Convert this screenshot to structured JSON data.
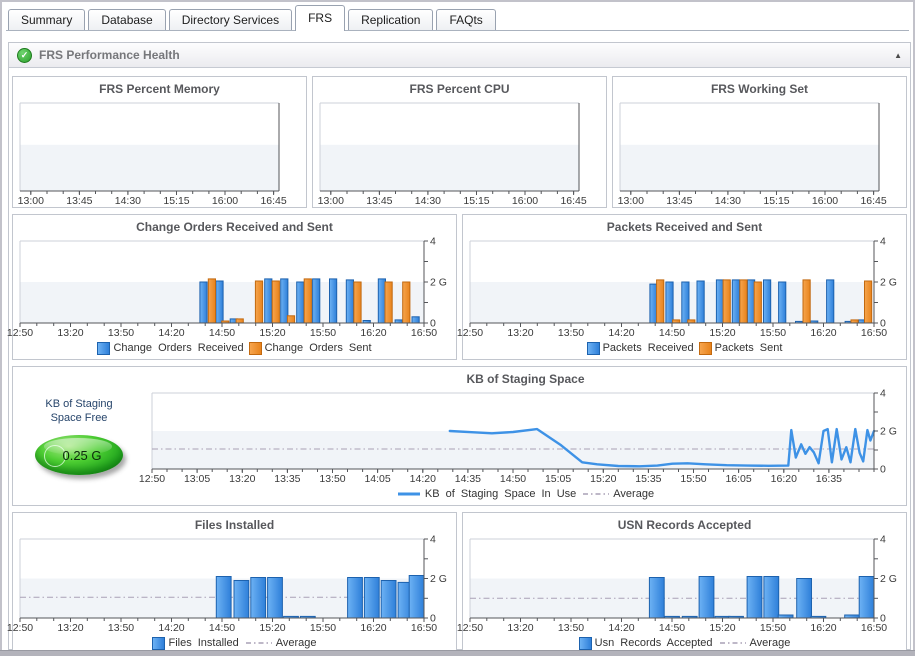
{
  "tabs": [
    {
      "label": "Summary",
      "active": false
    },
    {
      "label": "Database",
      "active": false
    },
    {
      "label": "Directory Services",
      "active": false
    },
    {
      "label": "FRS",
      "active": true
    },
    {
      "label": "Replication",
      "active": false
    },
    {
      "label": "FAQts",
      "active": false
    }
  ],
  "section": {
    "title": "FRS Performance Health"
  },
  "icons": {
    "health_ok": "✓",
    "collapse": "▲"
  },
  "gauge": {
    "label_line1": "KB of Staging",
    "label_line2": "Space Free",
    "value": "0.25 G",
    "color": "#2fbf2f"
  },
  "colors": {
    "bar_blue": "#2e7fd9",
    "bar_blue_light": "#6db2f4",
    "bar_blue_border": "#1d62ae",
    "bar_orange": "#e8831c",
    "bar_orange_light": "#f6a54e",
    "bar_orange_border": "#c2690f",
    "line_blue": "#3e92e6",
    "average_line": "#a9a0b5",
    "band": "#f1f4f8",
    "axis_dark": "#54565a",
    "axis_light": "#cdd1d8",
    "tick_text": "#3a3a3a"
  },
  "chart_data": [
    {
      "type": "line",
      "title": "FRS Percent Memory",
      "x_min": 0,
      "x_max": 240,
      "x_major_ticks": [
        {
          "t": 10,
          "label": "13:00"
        },
        {
          "t": 55,
          "label": "13:45"
        },
        {
          "t": 100,
          "label": "14:30"
        },
        {
          "t": 145,
          "label": "15:15"
        },
        {
          "t": 190,
          "label": "16:00"
        },
        {
          "t": 235,
          "label": "16:45"
        }
      ],
      "x_minor_start": 10,
      "x_minor_step": 15,
      "ylim": [
        0,
        4
      ],
      "y_ticks": [],
      "band_max": 2.1,
      "series": [],
      "legend": false
    },
    {
      "type": "line",
      "title": "FRS Percent CPU",
      "x_min": 0,
      "x_max": 240,
      "x_major_ticks": [
        {
          "t": 10,
          "label": "13:00"
        },
        {
          "t": 55,
          "label": "13:45"
        },
        {
          "t": 100,
          "label": "14:30"
        },
        {
          "t": 145,
          "label": "15:15"
        },
        {
          "t": 190,
          "label": "16:00"
        },
        {
          "t": 235,
          "label": "16:45"
        }
      ],
      "x_minor_start": 10,
      "x_minor_step": 15,
      "ylim": [
        0,
        4
      ],
      "y_ticks": [],
      "band_max": 2.1,
      "series": [],
      "legend": false
    },
    {
      "type": "line",
      "title": "FRS Working Set",
      "x_min": 0,
      "x_max": 240,
      "x_major_ticks": [
        {
          "t": 10,
          "label": "13:00"
        },
        {
          "t": 55,
          "label": "13:45"
        },
        {
          "t": 100,
          "label": "14:30"
        },
        {
          "t": 145,
          "label": "15:15"
        },
        {
          "t": 190,
          "label": "16:00"
        },
        {
          "t": 235,
          "label": "16:45"
        }
      ],
      "x_minor_start": 10,
      "x_minor_step": 15,
      "ylim": [
        0,
        4
      ],
      "y_ticks": [],
      "band_max": 2.1,
      "series": [],
      "legend": false
    },
    {
      "type": "bar",
      "title": "Change Orders Received and Sent",
      "x_min": 0,
      "x_max": 240,
      "x_major_ticks": [
        {
          "t": 0,
          "label": "12:50"
        },
        {
          "t": 30,
          "label": "13:20"
        },
        {
          "t": 60,
          "label": "13:50"
        },
        {
          "t": 90,
          "label": "14:20"
        },
        {
          "t": 120,
          "label": "14:50"
        },
        {
          "t": 150,
          "label": "15:20"
        },
        {
          "t": 180,
          "label": "15:50"
        },
        {
          "t": 210,
          "label": "16:20"
        },
        {
          "t": 240,
          "label": "16:50"
        }
      ],
      "x_minor_start": 0,
      "x_minor_step": 10,
      "ylim": [
        0,
        4
      ],
      "y_ticks": [
        {
          "v": 0,
          "label": "0"
        },
        {
          "v": 1,
          "label": ""
        },
        {
          "v": 2,
          "label": "2 G"
        },
        {
          "v": 3,
          "label": ""
        },
        {
          "v": 4,
          "label": "4"
        }
      ],
      "band_max": 2,
      "bar_width_min": 4.3,
      "series": [
        {
          "name": "Change Orders Received",
          "kind": "bar",
          "color": "#2e7fd9",
          "color_light": "#6db2f4",
          "border": "#1d62ae",
          "points": [
            [
              109,
              2.0
            ],
            [
              118.5,
              2.05
            ],
            [
              127,
              0.2
            ],
            [
              147.5,
              2.15
            ],
            [
              157,
              2.15
            ],
            [
              166.5,
              2.0
            ],
            [
              176,
              2.15
            ],
            [
              186,
              2.15
            ],
            [
              196,
              2.1
            ],
            [
              206,
              0.12
            ],
            [
              215,
              2.15
            ],
            [
              225,
              0.15
            ],
            [
              235,
              0.3
            ]
          ]
        },
        {
          "name": "Change Orders Sent",
          "kind": "bar",
          "color": "#e8831c",
          "color_light": "#f6a54e",
          "border": "#c2690f",
          "points": [
            [
              114,
              2.15
            ],
            [
              122,
              0.1
            ],
            [
              130.5,
              0.2
            ],
            [
              142,
              2.05
            ],
            [
              152,
              2.05
            ],
            [
              161,
              0.35
            ],
            [
              171,
              2.15
            ],
            [
              200.5,
              2.0
            ],
            [
              219,
              2.0
            ],
            [
              229.5,
              2.0
            ]
          ]
        }
      ]
    },
    {
      "type": "bar",
      "title": "Packets Received and Sent",
      "x_min": 0,
      "x_max": 240,
      "x_major_ticks": [
        {
          "t": 0,
          "label": "12:50"
        },
        {
          "t": 30,
          "label": "13:20"
        },
        {
          "t": 60,
          "label": "13:50"
        },
        {
          "t": 90,
          "label": "14:20"
        },
        {
          "t": 120,
          "label": "14:50"
        },
        {
          "t": 150,
          "label": "15:20"
        },
        {
          "t": 180,
          "label": "15:50"
        },
        {
          "t": 210,
          "label": "16:20"
        },
        {
          "t": 240,
          "label": "16:50"
        }
      ],
      "x_minor_start": 0,
      "x_minor_step": 10,
      "ylim": [
        0,
        4
      ],
      "y_ticks": [
        {
          "v": 0,
          "label": "0"
        },
        {
          "v": 1,
          "label": ""
        },
        {
          "v": 2,
          "label": "2 G"
        },
        {
          "v": 3,
          "label": ""
        },
        {
          "v": 4,
          "label": "4"
        }
      ],
      "band_max": 2,
      "bar_width_min": 4.3,
      "series": [
        {
          "name": "Packets Received",
          "kind": "bar",
          "color": "#2e7fd9",
          "color_light": "#6db2f4",
          "border": "#1d62ae",
          "points": [
            [
              109,
              1.9
            ],
            [
              118.5,
              2.0
            ],
            [
              128,
              2.0
            ],
            [
              137,
              2.05
            ],
            [
              148.5,
              2.1
            ],
            [
              158,
              2.1
            ],
            [
              167,
              2.1
            ],
            [
              176.5,
              2.1
            ],
            [
              185.5,
              2.0
            ],
            [
              195.5,
              0.08
            ],
            [
              204.5,
              0.1
            ],
            [
              214,
              2.1
            ],
            [
              225,
              0.08
            ],
            [
              233,
              0.15
            ]
          ]
        },
        {
          "name": "Packets Sent",
          "kind": "bar",
          "color": "#e8831c",
          "color_light": "#f6a54e",
          "border": "#c2690f",
          "points": [
            [
              113,
              2.1
            ],
            [
              122.5,
              0.15
            ],
            [
              131.5,
              0.15
            ],
            [
              152.5,
              2.1
            ],
            [
              162.5,
              2.1
            ],
            [
              171,
              2.0
            ],
            [
              200,
              2.1
            ],
            [
              228.5,
              0.15
            ],
            [
              236.5,
              2.05
            ]
          ]
        }
      ]
    },
    {
      "type": "line",
      "title": "KB of Staging Space",
      "x_min": 0,
      "x_max": 240,
      "x_major_ticks": [
        {
          "t": 0,
          "label": "12:50"
        },
        {
          "t": 15,
          "label": "13:05"
        },
        {
          "t": 30,
          "label": "13:20"
        },
        {
          "t": 45,
          "label": "13:35"
        },
        {
          "t": 60,
          "label": "13:50"
        },
        {
          "t": 75,
          "label": "14:05"
        },
        {
          "t": 90,
          "label": "14:20"
        },
        {
          "t": 105,
          "label": "14:35"
        },
        {
          "t": 120,
          "label": "14:50"
        },
        {
          "t": 135,
          "label": "15:05"
        },
        {
          "t": 150,
          "label": "15:20"
        },
        {
          "t": 165,
          "label": "15:35"
        },
        {
          "t": 180,
          "label": "15:50"
        },
        {
          "t": 195,
          "label": "16:05"
        },
        {
          "t": 210,
          "label": "16:20"
        },
        {
          "t": 225,
          "label": "16:35"
        }
      ],
      "x_minor_start": 0,
      "x_minor_step": 5,
      "ylim": [
        0,
        4
      ],
      "y_ticks": [
        {
          "v": 0,
          "label": "0"
        },
        {
          "v": 1,
          "label": ""
        },
        {
          "v": 2,
          "label": "2 G"
        },
        {
          "v": 3,
          "label": ""
        },
        {
          "v": 4,
          "label": "4"
        }
      ],
      "band_max": 2,
      "series": [
        {
          "name": "KB of Staging Space In Use",
          "kind": "line",
          "color": "#3e92e6",
          "points": [
            [
              99,
              2.0
            ],
            [
              107,
              1.93
            ],
            [
              113,
              1.88
            ],
            [
              120,
              1.95
            ],
            [
              128,
              2.1
            ],
            [
              136,
              1.25
            ],
            [
              143,
              0.35
            ],
            [
              148,
              0.25
            ],
            [
              155,
              0.16
            ],
            [
              162,
              0.14
            ],
            [
              168,
              0.18
            ],
            [
              173,
              0.28
            ],
            [
              178,
              0.3
            ],
            [
              184,
              0.25
            ],
            [
              191,
              0.2
            ],
            [
              198,
              0.18
            ],
            [
              205,
              0.17
            ],
            [
              211.5,
              0.18
            ],
            [
              212.5,
              2.05
            ],
            [
              214,
              0.6
            ],
            [
              215.8,
              1.3
            ],
            [
              217.2,
              0.8
            ],
            [
              218.6,
              1.15
            ],
            [
              220,
              0.88
            ],
            [
              221.6,
              0.3
            ],
            [
              223.2,
              2.0
            ],
            [
              224.6,
              2.1
            ],
            [
              226,
              0.35
            ],
            [
              227.6,
              2.1
            ],
            [
              229.2,
              0.5
            ],
            [
              230.8,
              1.15
            ],
            [
              232.2,
              0.35
            ],
            [
              233.8,
              2.1
            ],
            [
              235.2,
              0.85
            ],
            [
              236.4,
              0.4
            ],
            [
              237.8,
              2.05
            ],
            [
              238.8,
              1.5
            ],
            [
              240,
              2.0
            ]
          ]
        }
      ],
      "average": 1.05,
      "average_label": "Average"
    },
    {
      "type": "bar",
      "title": "Files Installed",
      "x_min": 0,
      "x_max": 240,
      "x_major_ticks": [
        {
          "t": 0,
          "label": "12:50"
        },
        {
          "t": 30,
          "label": "13:20"
        },
        {
          "t": 60,
          "label": "13:50"
        },
        {
          "t": 90,
          "label": "14:20"
        },
        {
          "t": 120,
          "label": "14:50"
        },
        {
          "t": 150,
          "label": "15:20"
        },
        {
          "t": 180,
          "label": "15:50"
        },
        {
          "t": 210,
          "label": "16:20"
        },
        {
          "t": 240,
          "label": "16:50"
        }
      ],
      "x_minor_start": 0,
      "x_minor_step": 10,
      "ylim": [
        0,
        4
      ],
      "y_ticks": [
        {
          "v": 0,
          "label": "0"
        },
        {
          "v": 1,
          "label": ""
        },
        {
          "v": 2,
          "label": "2 G"
        },
        {
          "v": 3,
          "label": ""
        },
        {
          "v": 4,
          "label": "4"
        }
      ],
      "band_max": 2,
      "bar_width_min": 8.8,
      "series": [
        {
          "name": "Files Installed",
          "kind": "bar",
          "color": "#2e7fd9",
          "color_light": "#6db2f4",
          "border": "#1d62ae",
          "points": [
            [
              121,
              2.1
            ],
            [
              131.5,
              1.9
            ],
            [
              141.5,
              2.05
            ],
            [
              151.5,
              2.05
            ],
            [
              161,
              0.08
            ],
            [
              171,
              0.08
            ],
            [
              199,
              2.05
            ],
            [
              209,
              2.05
            ],
            [
              219,
              1.9
            ],
            [
              229,
              1.8
            ],
            [
              236.5,
              2.15
            ]
          ]
        }
      ],
      "average": 1.05,
      "average_label": "Average"
    },
    {
      "type": "bar",
      "title": "USN Records Accepted",
      "x_min": 0,
      "x_max": 240,
      "x_major_ticks": [
        {
          "t": 0,
          "label": "12:50"
        },
        {
          "t": 30,
          "label": "13:20"
        },
        {
          "t": 60,
          "label": "13:50"
        },
        {
          "t": 90,
          "label": "14:20"
        },
        {
          "t": 120,
          "label": "14:50"
        },
        {
          "t": 150,
          "label": "15:20"
        },
        {
          "t": 180,
          "label": "15:50"
        },
        {
          "t": 210,
          "label": "16:20"
        },
        {
          "t": 240,
          "label": "16:50"
        }
      ],
      "x_minor_start": 0,
      "x_minor_step": 10,
      "ylim": [
        0,
        4
      ],
      "y_ticks": [
        {
          "v": 0,
          "label": "0"
        },
        {
          "v": 1,
          "label": ""
        },
        {
          "v": 2,
          "label": "2 G"
        },
        {
          "v": 3,
          "label": ""
        },
        {
          "v": 4,
          "label": "4"
        }
      ],
      "band_max": 2,
      "bar_width_min": 8.8,
      "series": [
        {
          "name": "Usn Records Accepted",
          "kind": "bar",
          "color": "#2e7fd9",
          "color_light": "#6db2f4",
          "border": "#1d62ae",
          "points": [
            [
              111,
              2.05
            ],
            [
              120,
              0.08
            ],
            [
              130.5,
              0.08
            ],
            [
              140.5,
              2.1
            ],
            [
              150,
              0.08
            ],
            [
              158,
              0.08
            ],
            [
              169,
              2.1
            ],
            [
              179,
              2.1
            ],
            [
              187.5,
              0.15
            ],
            [
              198.5,
              2.0
            ],
            [
              207,
              0.08
            ],
            [
              227,
              0.15
            ],
            [
              236,
              2.1
            ]
          ]
        }
      ],
      "average": 1.0,
      "average_label": "Average"
    }
  ]
}
